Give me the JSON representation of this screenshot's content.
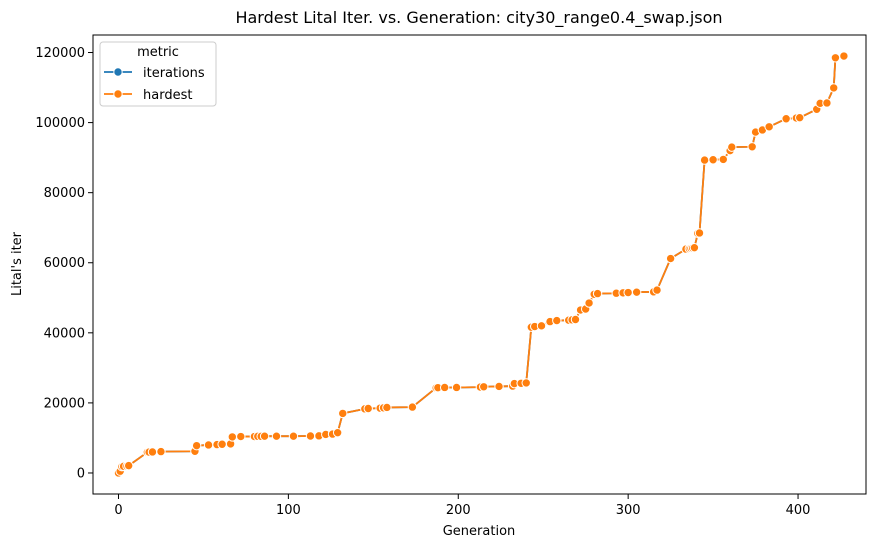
{
  "chart_data": {
    "type": "line",
    "title": "Hardest Lital Iter. vs. Generation: city30_range0.4_swap.json",
    "xlabel": "Generation",
    "ylabel": "Lital's iter",
    "xlim": [
      -15,
      440
    ],
    "ylim": [
      -6000,
      125000
    ],
    "x_ticks": [
      0,
      100,
      200,
      300,
      400
    ],
    "y_ticks": [
      0,
      20000,
      40000,
      60000,
      80000,
      100000,
      120000
    ],
    "x_tick_labels": [
      "0",
      "100",
      "200",
      "300",
      "400"
    ],
    "y_tick_labels": [
      "0",
      "20000",
      "40000",
      "60000",
      "80000",
      "100000",
      "120000"
    ],
    "grid": false,
    "legend": {
      "title": "metric",
      "position": "top-left"
    },
    "series": [
      {
        "name": "iterations",
        "color": "#1f77b4",
        "marker": "circle",
        "x": [
          0,
          1,
          2,
          3,
          5,
          6,
          17,
          18,
          20,
          25,
          45,
          46,
          53,
          58,
          61,
          66,
          67,
          72,
          80,
          82,
          84,
          86,
          93,
          103,
          113,
          118,
          122,
          126,
          129,
          132,
          145,
          147,
          154,
          156,
          158,
          173,
          187,
          188,
          192,
          199,
          213,
          215,
          224,
          232,
          233,
          237,
          240,
          243,
          245,
          249,
          254,
          258,
          265,
          267,
          269,
          272,
          275,
          277,
          280,
          282,
          293,
          297,
          300,
          305,
          315,
          317,
          325,
          334,
          336,
          337,
          338,
          339,
          341,
          342,
          345,
          350,
          356,
          360,
          361,
          373,
          375,
          379,
          383,
          393,
          399,
          401,
          411,
          413,
          417,
          421,
          422,
          427
        ],
        "y": [
          0,
          500,
          1800,
          1900,
          2000,
          2100,
          5900,
          5950,
          6000,
          6100,
          6200,
          7800,
          8000,
          8100,
          8200,
          8300,
          10300,
          10400,
          10400,
          10450,
          10450,
          10500,
          10500,
          10500,
          10550,
          10600,
          11000,
          11100,
          11500,
          17000,
          18300,
          18400,
          18500,
          18600,
          18700,
          18800,
          24300,
          24350,
          24400,
          24400,
          24500,
          24600,
          24700,
          24800,
          25500,
          25600,
          25700,
          41600,
          41800,
          42000,
          43200,
          43500,
          43600,
          43700,
          43800,
          46500,
          46800,
          48500,
          51000,
          51200,
          51300,
          51400,
          51500,
          51600,
          51700,
          52200,
          61200,
          63900,
          64000,
          64100,
          64200,
          64300,
          68400,
          68500,
          89300,
          89400,
          89500,
          92000,
          93000,
          93100,
          97300,
          97900,
          98800,
          101100,
          101300,
          101400,
          103800,
          105500,
          105600,
          109900,
          118500,
          119000
        ]
      },
      {
        "name": "hardest",
        "color": "#ff7f0e",
        "marker": "circle",
        "x": [
          0,
          1,
          2,
          3,
          5,
          6,
          17,
          18,
          20,
          25,
          45,
          46,
          53,
          58,
          61,
          66,
          67,
          72,
          80,
          82,
          84,
          86,
          93,
          103,
          113,
          118,
          122,
          126,
          129,
          132,
          145,
          147,
          154,
          156,
          158,
          173,
          187,
          188,
          192,
          199,
          213,
          215,
          224,
          232,
          233,
          237,
          240,
          243,
          245,
          249,
          254,
          258,
          265,
          267,
          269,
          272,
          275,
          277,
          280,
          282,
          293,
          297,
          300,
          305,
          315,
          317,
          325,
          334,
          336,
          337,
          338,
          339,
          341,
          342,
          345,
          350,
          356,
          360,
          361,
          373,
          375,
          379,
          383,
          393,
          399,
          401,
          411,
          413,
          417,
          421,
          422,
          427
        ],
        "y": [
          0,
          500,
          1800,
          1900,
          2000,
          2100,
          5900,
          5950,
          6000,
          6100,
          6200,
          7800,
          8000,
          8100,
          8200,
          8300,
          10300,
          10400,
          10400,
          10450,
          10450,
          10500,
          10500,
          10500,
          10550,
          10600,
          11000,
          11100,
          11500,
          17000,
          18300,
          18400,
          18500,
          18600,
          18700,
          18800,
          24300,
          24350,
          24400,
          24400,
          24500,
          24600,
          24700,
          24800,
          25500,
          25600,
          25700,
          41600,
          41800,
          42000,
          43200,
          43500,
          43600,
          43700,
          43800,
          46500,
          46800,
          48500,
          51000,
          51200,
          51300,
          51400,
          51500,
          51600,
          51700,
          52200,
          61200,
          63900,
          64000,
          64100,
          64200,
          64300,
          68400,
          68500,
          89300,
          89400,
          89500,
          92000,
          93000,
          93100,
          97300,
          97900,
          98800,
          101100,
          101300,
          101400,
          103800,
          105500,
          105600,
          109900,
          118500,
          119000
        ]
      }
    ]
  }
}
